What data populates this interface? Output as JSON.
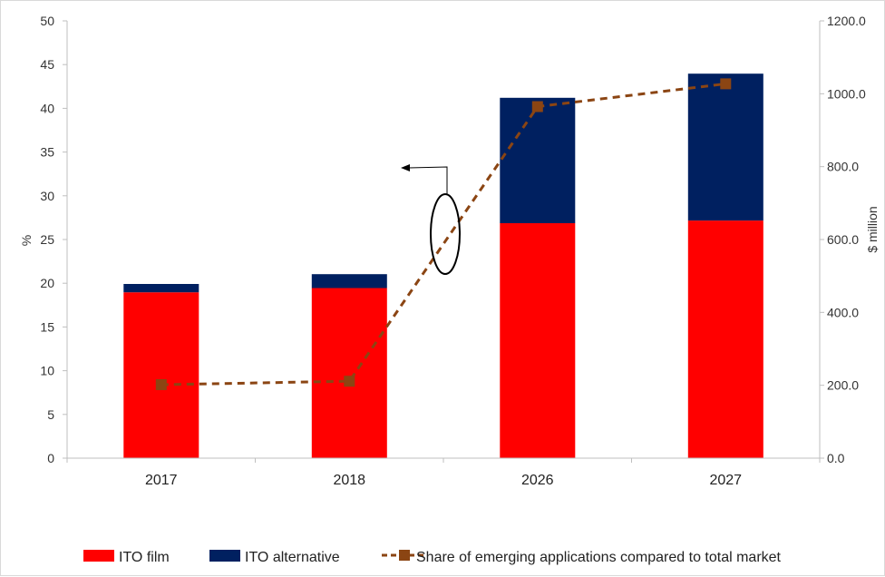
{
  "chart_data": {
    "type": "bar",
    "stacked": true,
    "categories": [
      "2017",
      "2018",
      "2026",
      "2027"
    ],
    "series": [
      {
        "name": "ITO film",
        "axis": "right",
        "color": "#ff0000",
        "values": [
          455,
          467,
          645,
          652
        ]
      },
      {
        "name": "ITO alternative",
        "axis": "right",
        "color": "#002060",
        "values": [
          23,
          38,
          344,
          403
        ]
      },
      {
        "name": "Share of emerging applications compared to total market",
        "axis": "left",
        "type": "line",
        "style": "dashed",
        "marker": "square",
        "color": "#8b4513",
        "values": [
          8.4,
          8.8,
          40.2,
          42.8
        ]
      }
    ],
    "ylabel": "%",
    "y2label": "$ million",
    "ylim": [
      0,
      50
    ],
    "y2lim": [
      0,
      1200
    ],
    "yticks": [
      "0",
      "5",
      "10",
      "15",
      "20",
      "25",
      "30",
      "35",
      "40",
      "45",
      "50"
    ],
    "y2ticks": [
      "0.0",
      "200.0",
      "400.0",
      "600.0",
      "800.0",
      "1000.0",
      "1200.0"
    ],
    "grid": false,
    "legend": "bottom",
    "annotation": "ellipse around dashed line with arrow pointing left to % axis"
  }
}
